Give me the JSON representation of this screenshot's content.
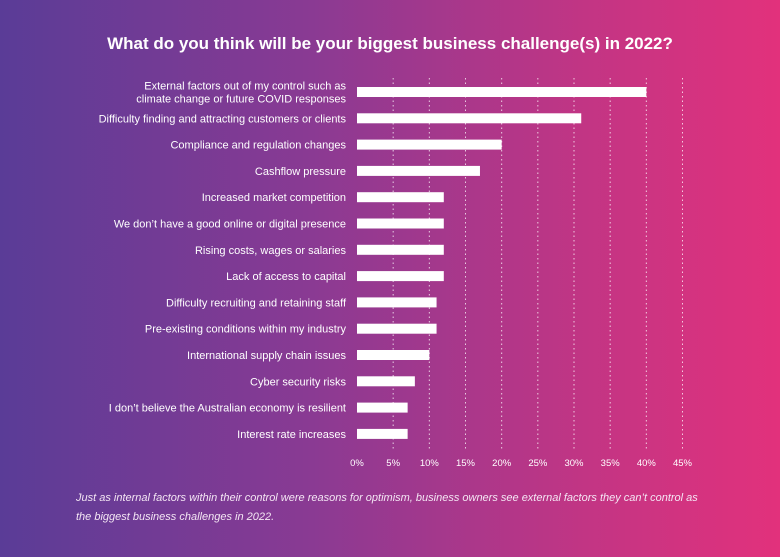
{
  "chart_data": {
    "type": "bar",
    "orientation": "horizontal",
    "title": "What do you think will be your biggest business challenge(s) in 2022?",
    "categories": [
      "External factors out of my control such as\nclimate change or future COVID responses",
      "Difficulty finding and attracting customers or clients",
      "Compliance and regulation changes",
      "Cashflow pressure",
      "Increased market competition",
      "We don’t have a good online or digital presence",
      "Rising costs, wages or salaries",
      "Lack of access to capital",
      "Difficulty recruiting and retaining staff",
      "Pre-existing conditions within my industry",
      "International supply chain issues",
      "Cyber security risks",
      "I don’t believe the Australian economy is resilient",
      "Interest rate increases"
    ],
    "values": [
      40,
      31,
      20,
      17,
      12,
      12,
      12,
      12,
      11,
      11,
      10,
      8,
      7,
      7
    ],
    "xlim": [
      0,
      45
    ],
    "xticks": [
      "0%",
      "5%",
      "10%",
      "15%",
      "20%",
      "25%",
      "30%",
      "35%",
      "40%",
      "45%"
    ],
    "grid": "vertical dotted",
    "bar_color": "#ffffff",
    "background_gradient": [
      "#5a3c97",
      "#e2317c"
    ]
  },
  "footnote": "Just as internal factors within their control were reasons for optimism, business owners see external factors they can’t control as the biggest business challenges in 2022."
}
